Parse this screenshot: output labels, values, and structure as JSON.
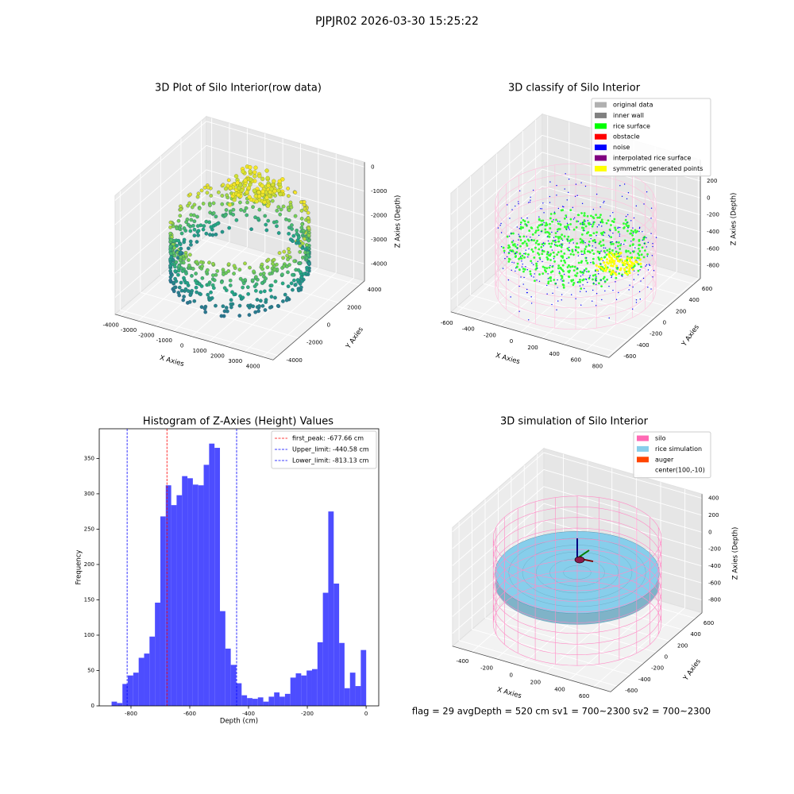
{
  "suptitle": "PJPJR02 2026-03-30 15:25:22",
  "chart_data": [
    {
      "type": "scatter3d",
      "title": "3D Plot of Silo Interior(row data)",
      "xlabel": "X Axies",
      "ylabel": "Y Axies",
      "zlabel": "Z Axies (Depth)",
      "xlim": [
        -4300,
        4600
      ],
      "ylim": [
        -4500,
        4500
      ],
      "zlim": [
        -4700,
        200
      ],
      "xticks": [
        -4000,
        -3000,
        -2000,
        -1000,
        0,
        1000,
        2000,
        3000,
        4000
      ],
      "yticks": [
        -4000,
        -2000,
        0,
        2000,
        4000
      ],
      "zticks": [
        -4000,
        -3000,
        -2000,
        -1000,
        0
      ]
    },
    {
      "type": "scatter3d",
      "title": "3D classify of Silo Interior",
      "xlabel": "X Axies",
      "ylabel": "Y Axies",
      "zlabel": "Z Axies (Depth)",
      "xlim": [
        -650,
        820
      ],
      "ylim": [
        -700,
        700
      ],
      "zlim": [
        -950,
        450
      ],
      "xticks": [
        -600,
        -400,
        -200,
        0,
        200,
        400,
        600,
        800
      ],
      "yticks": [
        -600,
        -400,
        -200,
        0,
        200,
        400,
        600
      ],
      "zticks": [
        -800,
        -600,
        -400,
        -200,
        0,
        200
      ],
      "legend_loc": "upper right",
      "legend": [
        {
          "name": "original data",
          "color": "#b0b0b0"
        },
        {
          "name": "inner wall",
          "color": "#808080"
        },
        {
          "name": "rice surface",
          "color": "#00ff00"
        },
        {
          "name": "obstacle",
          "color": "#ff0000"
        },
        {
          "name": "noise",
          "color": "#0000ff"
        },
        {
          "name": "interpolated rice surface",
          "color": "#800080"
        },
        {
          "name": "symmetric generated points",
          "color": "#ffff00"
        }
      ]
    },
    {
      "type": "histogram",
      "title": "Histogram of Z-Axies (Height) Values",
      "xlabel": "Depth (cm)",
      "ylabel": "Frequency",
      "color": "#4d4dff",
      "xlim": [
        -908,
        43
      ],
      "ylim": [
        0,
        392
      ],
      "xticks": [
        -800,
        -600,
        -400,
        -200,
        0
      ],
      "yticks": [
        0,
        50,
        100,
        150,
        200,
        250,
        300,
        350
      ],
      "bins": [
        -866,
        -847.6,
        -829.1,
        -810.7,
        -792.3,
        -773.8,
        -755.4,
        -737.0,
        -718.5,
        -700.1,
        -681.7,
        -663.2,
        -644.8,
        -626.4,
        -607.9,
        -589.5,
        -571.1,
        -552.6,
        -534.2,
        -515.8,
        -497.3,
        -478.9,
        -460.5,
        -442.0,
        -423.6,
        -405.2,
        -386.7,
        -368.3,
        -349.9,
        -331.4,
        -313.0,
        -294.6,
        -276.1,
        -257.7,
        -239.3,
        -220.8,
        -202.4,
        -184.0,
        -165.5,
        -147.1,
        -128.7,
        -110.2,
        -91.8,
        -73.4,
        -54.9,
        -36.5,
        -18.1,
        0.3
      ],
      "values": [
        6,
        4,
        31,
        43,
        47,
        68,
        74,
        98,
        146,
        268,
        312,
        284,
        298,
        325,
        322,
        313,
        312,
        341,
        371,
        365,
        134,
        81,
        58,
        32,
        15,
        11,
        10,
        12,
        6,
        13,
        19,
        13,
        17,
        40,
        46,
        43,
        50,
        52,
        90,
        160,
        275,
        173,
        89,
        25,
        47,
        28,
        79
      ],
      "legend_loc": "upper right",
      "vlines": [
        {
          "label": "first_peak: -677.66 cm",
          "value": -677.66,
          "color": "#ff0000"
        },
        {
          "label": "Upper_limit: -440.58 cm",
          "value": -440.58,
          "color": "#0000ff"
        },
        {
          "label": "Lower_limit: -813.13 cm",
          "value": -813.13,
          "color": "#0000ff"
        }
      ]
    },
    {
      "type": "surface3d",
      "title": "3D simulation of Silo Interior",
      "xlabel": "X Axies",
      "ylabel": "Y Axies",
      "zlabel": "Z Axies (Depth)",
      "xlim": [
        -560,
        740
      ],
      "ylim": [
        -700,
        700
      ],
      "zlim": [
        -950,
        450
      ],
      "xticks": [
        -400,
        -200,
        0,
        200,
        400,
        600
      ],
      "yticks": [
        -600,
        -400,
        -200,
        0,
        200,
        400,
        600
      ],
      "zticks": [
        -800,
        -600,
        -400,
        -200,
        0,
        200,
        400
      ],
      "legend_loc": "upper right",
      "legend": [
        {
          "name": "silo",
          "color": "#ff69b4"
        },
        {
          "name": "rice simulation",
          "color": "#87ceeb"
        },
        {
          "name": "auger",
          "color": "#ff4500"
        },
        {
          "name": "center(100,-10)"
        }
      ],
      "annotation": "flag = 29  avgDepth = 520 cm  sv1 = 700~2300  sv2 = 700~2300"
    }
  ]
}
